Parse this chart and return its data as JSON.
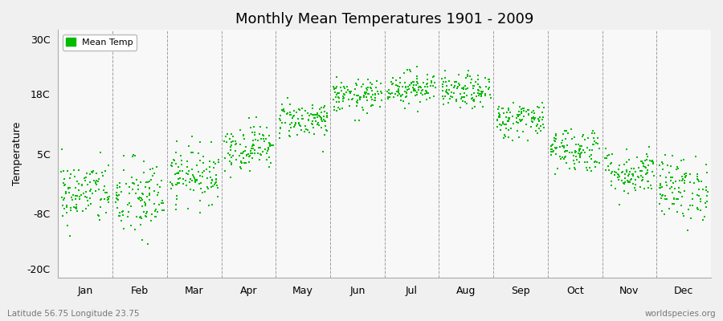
{
  "title": "Monthly Mean Temperatures 1901 - 2009",
  "ylabel": "Temperature",
  "xlabel_labels": [
    "Jan",
    "Feb",
    "Mar",
    "Apr",
    "May",
    "Jun",
    "Jul",
    "Aug",
    "Sep",
    "Oct",
    "Nov",
    "Dec"
  ],
  "ytick_labels": [
    "-20C",
    "-8C",
    "5C",
    "18C",
    "30C"
  ],
  "ytick_values": [
    -20,
    -8,
    5,
    18,
    30
  ],
  "ylim": [
    -22,
    32
  ],
  "dot_color": "#00bb00",
  "dot_size": 3,
  "background_color": "#f0f0f0",
  "plot_bg_color": "#f8f8f8",
  "legend_label": "Mean Temp",
  "footer_left": "Latitude 56.75 Longitude 23.75",
  "footer_right": "worldspecies.org",
  "num_years": 109,
  "seed": 42,
  "monthly_means": [
    -3.5,
    -5.0,
    0.5,
    6.5,
    12.5,
    17.5,
    19.5,
    18.5,
    12.5,
    6.0,
    1.0,
    -2.5
  ],
  "monthly_stds": [
    3.5,
    4.5,
    3.0,
    2.5,
    2.0,
    1.8,
    1.8,
    1.8,
    2.0,
    2.5,
    2.5,
    3.5
  ]
}
